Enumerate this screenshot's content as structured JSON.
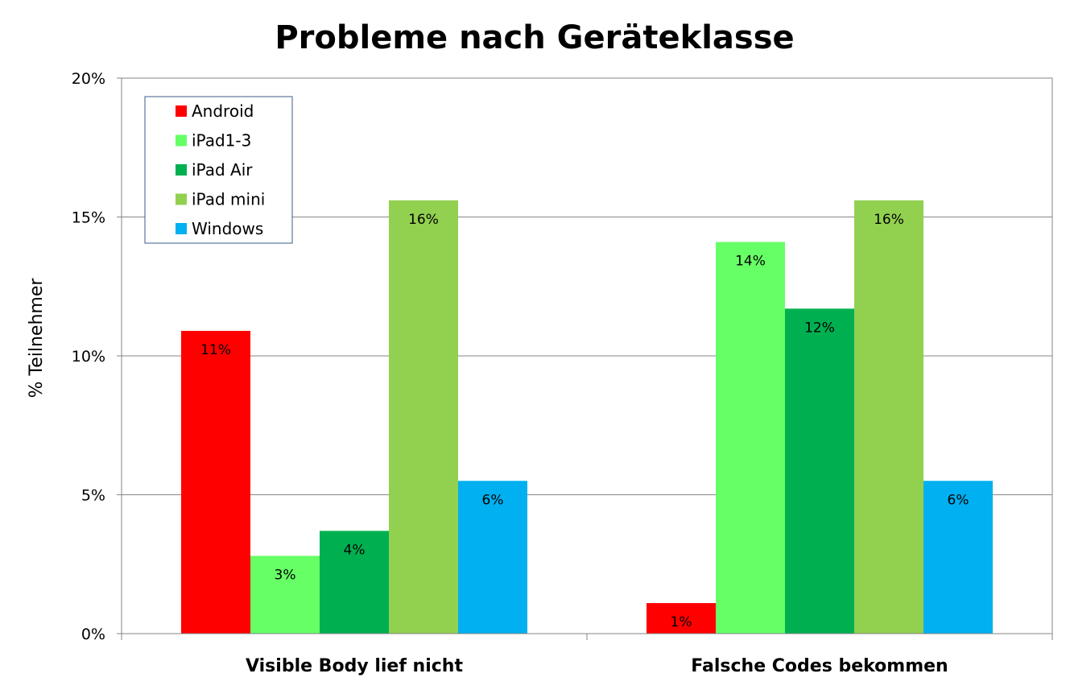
{
  "chart_data": {
    "type": "bar",
    "title": "Probleme nach Geräteklasse",
    "ylabel": "% Teilnehmer",
    "xlabel": "",
    "categories": [
      "Visible Body lief nicht",
      "Falsche Codes bekommen"
    ],
    "ylim": [
      0,
      20
    ],
    "yticks": [
      0,
      5,
      10,
      15,
      20
    ],
    "ytick_labels": [
      "0%",
      "5%",
      "10%",
      "15%",
      "20%"
    ],
    "grid": true,
    "legend_position": "top-left",
    "series": [
      {
        "name": "Android",
        "color": "#ff0000",
        "values": [
          10.9,
          1.1
        ],
        "labels": [
          "11%",
          "1%"
        ]
      },
      {
        "name": "iPad1-3",
        "color": "#66ff66",
        "values": [
          2.8,
          14.1
        ],
        "labels": [
          "3%",
          "14%"
        ]
      },
      {
        "name": "iPad Air",
        "color": "#00b050",
        "values": [
          3.7,
          11.7
        ],
        "labels": [
          "4%",
          "12%"
        ]
      },
      {
        "name": "iPad mini",
        "color": "#92d050",
        "values": [
          15.6,
          15.6
        ],
        "labels": [
          "16%",
          "16%"
        ]
      },
      {
        "name": "Windows",
        "color": "#00b0f0",
        "values": [
          5.5,
          5.5
        ],
        "labels": [
          "6%",
          "6%"
        ]
      }
    ]
  }
}
